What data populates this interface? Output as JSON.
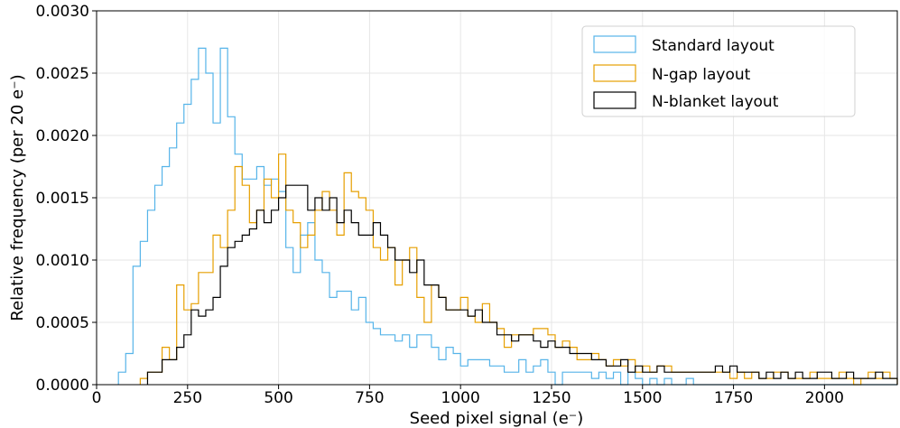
{
  "chart_data": {
    "type": "histogram",
    "xlabel": "Seed pixel signal (e⁻)",
    "ylabel": "Relative frequency (per 20 e⁻)",
    "xlim": [
      0,
      2200
    ],
    "ylim": [
      0,
      0.003
    ],
    "bin_width": 20,
    "grid": true,
    "legend_position": "top-right",
    "x_ticks": [
      "0",
      "250",
      "500",
      "750",
      "1000",
      "1250",
      "1500",
      "1750",
      "2000"
    ],
    "y_ticks": [
      "0.0000",
      "0.0005",
      "0.0010",
      "0.0015",
      "0.0020",
      "0.0025",
      "0.0030"
    ],
    "series": [
      {
        "name": "Standard layout",
        "color": "#56B4E9",
        "bins_start": 60,
        "values": [
          0.0001,
          0.00025,
          0.00095,
          0.00115,
          0.0014,
          0.0016,
          0.00175,
          0.0019,
          0.0021,
          0.00225,
          0.00245,
          0.0027,
          0.0025,
          0.0021,
          0.0027,
          0.00215,
          0.00185,
          0.00165,
          0.00165,
          0.00175,
          0.0016,
          0.00165,
          0.00155,
          0.0011,
          0.0009,
          0.0012,
          0.0013,
          0.001,
          0.0009,
          0.0007,
          0.00075,
          0.00075,
          0.0006,
          0.0007,
          0.0005,
          0.00045,
          0.0004,
          0.0004,
          0.00035,
          0.0004,
          0.0003,
          0.0004,
          0.0004,
          0.0003,
          0.0002,
          0.0003,
          0.00025,
          0.00015,
          0.0002,
          0.0002,
          0.0002,
          0.00015,
          0.00015,
          0.0001,
          0.0001,
          0.0002,
          0.0001,
          0.00015,
          0.0002,
          0.0001,
          0.0,
          0.0001,
          0.0001,
          0.0001,
          0.0001,
          5e-05,
          0.0001,
          5e-05,
          0.0001,
          0.0,
          0.0001,
          5e-05,
          0.0,
          5e-05,
          0.0,
          5e-05,
          0.0,
          0.0,
          5e-05,
          0.0,
          0.0,
          0.0,
          0.0,
          0.0,
          0.0,
          0.0,
          0.0,
          0.0,
          0.0,
          0.0,
          0.0,
          0.0,
          0.0,
          0.0,
          0.0,
          0.0,
          0.0,
          0.0,
          0.0,
          0.0,
          0.0,
          0.0,
          0.0,
          0.0,
          0.0,
          0.0,
          0.0
        ]
      },
      {
        "name": "N-gap layout",
        "color": "#E69F00",
        "bins_start": 120,
        "values": [
          5e-05,
          0.0001,
          0.0001,
          0.0003,
          0.0002,
          0.0008,
          0.0006,
          0.00065,
          0.0009,
          0.0009,
          0.0012,
          0.0011,
          0.0014,
          0.00175,
          0.0016,
          0.0013,
          0.0014,
          0.00165,
          0.0015,
          0.00185,
          0.0014,
          0.0013,
          0.0011,
          0.0012,
          0.0014,
          0.00155,
          0.0014,
          0.0012,
          0.0017,
          0.00155,
          0.0015,
          0.0014,
          0.0011,
          0.001,
          0.0011,
          0.0008,
          0.001,
          0.0011,
          0.0007,
          0.0005,
          0.0008,
          0.0007,
          0.0006,
          0.0006,
          0.0007,
          0.00055,
          0.0005,
          0.00065,
          0.0005,
          0.00045,
          0.0003,
          0.0004,
          0.0004,
          0.0004,
          0.00045,
          0.00045,
          0.0004,
          0.0003,
          0.00035,
          0.0003,
          0.0002,
          0.0002,
          0.00025,
          0.0002,
          0.00015,
          0.0002,
          0.00015,
          0.0002,
          0.0001,
          0.00015,
          0.0001,
          0.00015,
          0.00015,
          0.0001,
          0.0001,
          0.0001,
          0.0001,
          0.0001,
          0.0001,
          0.0001,
          0.0001,
          5e-05,
          0.0001,
          5e-05,
          0.0001,
          5e-05,
          5e-05,
          0.0001,
          0.0001,
          5e-05,
          5e-05,
          5e-05,
          0.0001,
          5e-05,
          5e-05,
          5e-05,
          0.0001,
          5e-05,
          0.0,
          5e-05,
          0.0001,
          5e-05,
          0.0001,
          5e-05
        ]
      },
      {
        "name": "N-blanket layout",
        "color": "#000000",
        "bins_start": 140,
        "values": [
          0.0001,
          0.0001,
          0.0002,
          0.0002,
          0.0003,
          0.0004,
          0.0006,
          0.00055,
          0.0006,
          0.0007,
          0.00095,
          0.0011,
          0.00115,
          0.0012,
          0.00125,
          0.0014,
          0.0013,
          0.0014,
          0.0015,
          0.0016,
          0.0016,
          0.0016,
          0.0014,
          0.0015,
          0.0014,
          0.0015,
          0.0013,
          0.0014,
          0.0013,
          0.0012,
          0.0012,
          0.0013,
          0.0012,
          0.0011,
          0.001,
          0.001,
          0.0009,
          0.001,
          0.0008,
          0.0008,
          0.0007,
          0.0006,
          0.0006,
          0.0006,
          0.00055,
          0.0006,
          0.0005,
          0.0005,
          0.0004,
          0.0004,
          0.00035,
          0.0004,
          0.0004,
          0.00035,
          0.0003,
          0.00035,
          0.0003,
          0.0003,
          0.00025,
          0.00025,
          0.00025,
          0.0002,
          0.0002,
          0.00015,
          0.00015,
          0.0002,
          0.0001,
          0.00015,
          0.0001,
          0.0001,
          0.00015,
          0.0001,
          0.0001,
          0.0001,
          0.0001,
          0.0001,
          0.0001,
          0.0001,
          0.00015,
          0.0001,
          0.00015,
          0.0001,
          0.0001,
          0.0001,
          5e-05,
          0.0001,
          5e-05,
          0.0001,
          5e-05,
          0.0001,
          5e-05,
          5e-05,
          0.0001,
          0.0001,
          5e-05,
          5e-05,
          0.0001,
          5e-05,
          5e-05,
          5e-05,
          0.0001,
          5e-05,
          5e-05
        ]
      }
    ]
  }
}
